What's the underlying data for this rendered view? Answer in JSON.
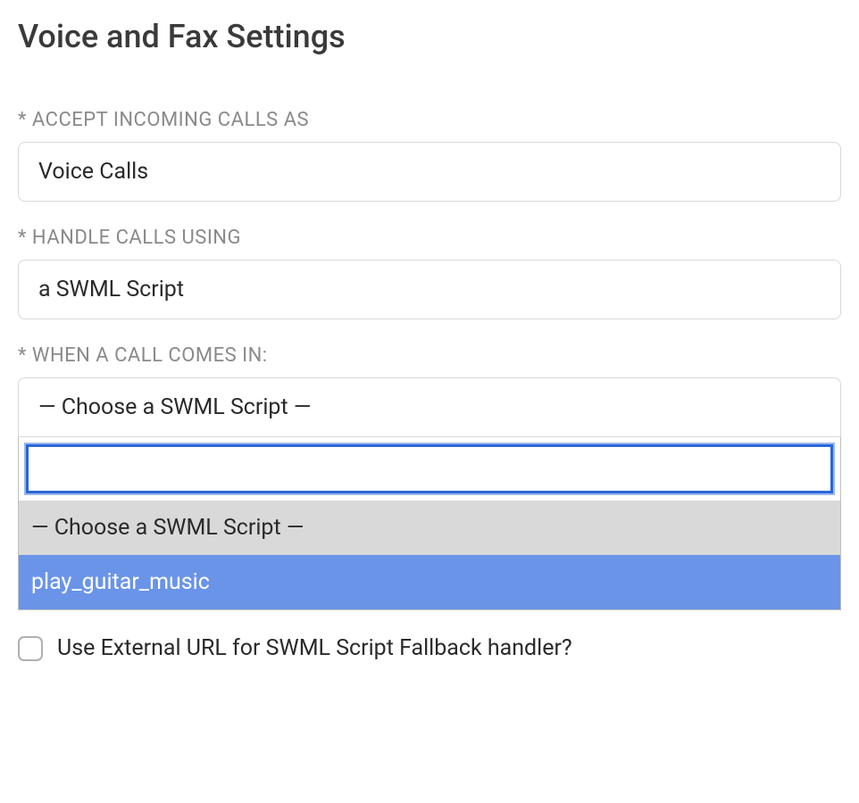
{
  "page": {
    "title": "Voice and Fax Settings"
  },
  "fields": {
    "accept_incoming": {
      "label": "* ACCEPT INCOMING CALLS AS",
      "value": "Voice Calls"
    },
    "handle_calls": {
      "label": "* HANDLE CALLS USING",
      "value": "a SWML Script"
    },
    "when_call": {
      "label": "* WHEN A CALL COMES IN:",
      "selected": "— Choose a SWML Script —",
      "search_value": "",
      "options": [
        {
          "label": "— Choose a SWML Script —",
          "state": "placeholder"
        },
        {
          "label": "play_guitar_music",
          "state": "highlighted"
        }
      ]
    },
    "fallback_checkbox": {
      "label": "Use External URL for SWML Script Fallback handler?",
      "checked": false
    }
  },
  "colors": {
    "title_text": "#3a3a3a",
    "label_text": "#8a8a8a",
    "value_text": "#2a2a2a",
    "border": "#d8d8d8",
    "search_border": "#2b66d9",
    "search_outline": "#9db8e8",
    "option_placeholder_bg": "#d9d9d9",
    "option_highlight_bg": "#6a94e8",
    "option_highlight_text": "#ffffff",
    "checkbox_border": "#b0b0b0",
    "background": "#ffffff"
  },
  "typography": {
    "title_fontsize": 36,
    "label_fontsize": 22,
    "value_fontsize": 25,
    "option_fontsize": 25,
    "checkbox_label_fontsize": 25
  }
}
